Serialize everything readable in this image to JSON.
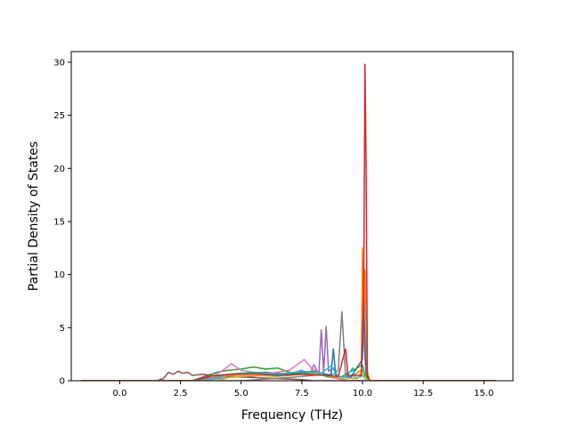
{
  "chart_data": {
    "type": "line",
    "title": "",
    "xlabel": "Frequency (THz)",
    "ylabel": "Partial Density of States",
    "xlim": [
      -2.0,
      16.2
    ],
    "ylim": [
      0,
      31
    ],
    "xticks": [
      {
        "value": 0.0,
        "label": "0.0"
      },
      {
        "value": 2.5,
        "label": "2.5"
      },
      {
        "value": 5.0,
        "label": "5.0"
      },
      {
        "value": 7.5,
        "label": "7.5"
      },
      {
        "value": 10.0,
        "label": "10.0"
      },
      {
        "value": 12.5,
        "label": "12.5"
      },
      {
        "value": 15.0,
        "label": "15.0"
      }
    ],
    "yticks": [
      {
        "value": 0,
        "label": "0"
      },
      {
        "value": 5,
        "label": "5"
      },
      {
        "value": 10,
        "label": "10"
      },
      {
        "value": 15,
        "label": "15"
      },
      {
        "value": 20,
        "label": "20"
      },
      {
        "value": 25,
        "label": "25"
      },
      {
        "value": 30,
        "label": "30"
      }
    ],
    "grid": false,
    "legend": "none",
    "series": [
      {
        "color": "#8c564b",
        "points": [
          [
            -1.6,
            0
          ],
          [
            1.5,
            0
          ],
          [
            1.8,
            0.2
          ],
          [
            2.0,
            0.8
          ],
          [
            2.2,
            0.6
          ],
          [
            2.4,
            0.9
          ],
          [
            2.6,
            0.7
          ],
          [
            2.8,
            0.8
          ],
          [
            3.0,
            0.5
          ],
          [
            3.4,
            0.6
          ],
          [
            3.8,
            0.5
          ],
          [
            4.5,
            0.4
          ],
          [
            5.5,
            0.3
          ],
          [
            6.5,
            0.2
          ],
          [
            7.5,
            0.1
          ],
          [
            8.0,
            0
          ],
          [
            15.5,
            0
          ]
        ]
      },
      {
        "color": "#9467bd",
        "points": [
          [
            -1.6,
            0
          ],
          [
            3.0,
            0
          ],
          [
            5.0,
            0.4
          ],
          [
            6.0,
            0.5
          ],
          [
            7.0,
            0.6
          ],
          [
            7.5,
            1.0
          ],
          [
            7.8,
            0.5
          ],
          [
            8.0,
            1.5
          ],
          [
            8.2,
            0.6
          ],
          [
            8.3,
            4.8
          ],
          [
            8.4,
            0.8
          ],
          [
            8.5,
            5.1
          ],
          [
            8.6,
            0.9
          ],
          [
            8.8,
            1.2
          ],
          [
            9.0,
            0.2
          ],
          [
            9.5,
            0
          ],
          [
            15.5,
            0
          ]
        ]
      },
      {
        "color": "#7f7f7f",
        "points": [
          [
            -1.6,
            0
          ],
          [
            5.0,
            0
          ],
          [
            7.0,
            0.3
          ],
          [
            8.0,
            0.5
          ],
          [
            8.8,
            0.6
          ],
          [
            9.0,
            1.0
          ],
          [
            9.15,
            6.5
          ],
          [
            9.3,
            0.5
          ],
          [
            9.6,
            0.2
          ],
          [
            9.95,
            0.4
          ],
          [
            10.0,
            7.8
          ],
          [
            10.08,
            3.0
          ],
          [
            10.15,
            0.5
          ],
          [
            10.3,
            0
          ],
          [
            15.5,
            0
          ]
        ]
      },
      {
        "color": "#ff7f0e",
        "points": [
          [
            -1.6,
            0
          ],
          [
            3.0,
            0
          ],
          [
            4.5,
            0.5
          ],
          [
            6.0,
            0.6
          ],
          [
            7.5,
            0.8
          ],
          [
            8.5,
            0.5
          ],
          [
            9.5,
            0.3
          ],
          [
            9.95,
            1.0
          ],
          [
            10.0,
            12.5
          ],
          [
            10.05,
            3.5
          ],
          [
            10.1,
            10.5
          ],
          [
            10.18,
            1.0
          ],
          [
            10.3,
            0
          ],
          [
            15.5,
            0
          ]
        ]
      },
      {
        "color": "#1f77b4",
        "points": [
          [
            -1.6,
            0
          ],
          [
            3.0,
            0
          ],
          [
            4.0,
            0.5
          ],
          [
            5.0,
            0.7
          ],
          [
            6.0,
            0.8
          ],
          [
            7.0,
            0.6
          ],
          [
            8.0,
            0.9
          ],
          [
            8.7,
            0.5
          ],
          [
            8.8,
            3.0
          ],
          [
            8.9,
            0.4
          ],
          [
            9.5,
            0.3
          ],
          [
            10.0,
            2.0
          ],
          [
            10.05,
            7.5
          ],
          [
            10.12,
            2.0
          ],
          [
            10.2,
            0
          ],
          [
            15.5,
            0
          ]
        ]
      },
      {
        "color": "#2ca02c",
        "points": [
          [
            -1.6,
            0
          ],
          [
            3.0,
            0
          ],
          [
            4.0,
            0.8
          ],
          [
            4.5,
            1.0
          ],
          [
            5.0,
            1.1
          ],
          [
            5.5,
            1.3
          ],
          [
            6.0,
            1.1
          ],
          [
            6.5,
            1.2
          ],
          [
            7.0,
            0.8
          ],
          [
            7.5,
            0.6
          ],
          [
            8.0,
            0.9
          ],
          [
            8.5,
            0.4
          ],
          [
            9.0,
            0.2
          ],
          [
            10.0,
            1.5
          ],
          [
            10.1,
            0.5
          ],
          [
            10.3,
            0
          ],
          [
            15.5,
            0
          ]
        ]
      },
      {
        "color": "#e377c2",
        "points": [
          [
            -1.6,
            0
          ],
          [
            3.5,
            0
          ],
          [
            4.2,
            0.9
          ],
          [
            4.6,
            1.6
          ],
          [
            5.0,
            1.0
          ],
          [
            5.5,
            0.8
          ],
          [
            6.2,
            0.7
          ],
          [
            7.0,
            1.0
          ],
          [
            7.6,
            2.0
          ],
          [
            7.9,
            1.2
          ],
          [
            8.3,
            0.6
          ],
          [
            9.0,
            0.2
          ],
          [
            9.5,
            0
          ],
          [
            15.5,
            0
          ]
        ]
      },
      {
        "color": "#17becf",
        "points": [
          [
            -1.6,
            0
          ],
          [
            3.5,
            0
          ],
          [
            4.5,
            0.6
          ],
          [
            5.5,
            0.8
          ],
          [
            6.5,
            0.6
          ],
          [
            7.5,
            0.9
          ],
          [
            8.3,
            0.7
          ],
          [
            8.7,
            1.4
          ],
          [
            9.0,
            0.4
          ],
          [
            9.3,
            0.3
          ],
          [
            9.6,
            1.2
          ],
          [
            9.7,
            0.2
          ],
          [
            10.0,
            0.5
          ],
          [
            10.2,
            0
          ],
          [
            15.5,
            0
          ]
        ]
      },
      {
        "color": "#bcbd22",
        "points": [
          [
            -1.6,
            0
          ],
          [
            4.0,
            0
          ],
          [
            4.5,
            0.3
          ],
          [
            5.5,
            0.5
          ],
          [
            6.5,
            0.4
          ],
          [
            7.5,
            0.6
          ],
          [
            8.5,
            0.5
          ],
          [
            9.0,
            0.3
          ],
          [
            9.8,
            0.2
          ],
          [
            10.0,
            1.0
          ],
          [
            10.1,
            0.2
          ],
          [
            10.3,
            0
          ],
          [
            15.5,
            0
          ]
        ]
      },
      {
        "color": "#d62728",
        "points": [
          [
            -1.6,
            0
          ],
          [
            3.0,
            0
          ],
          [
            3.5,
            0.4
          ],
          [
            4.5,
            0.6
          ],
          [
            5.5,
            0.7
          ],
          [
            6.5,
            0.5
          ],
          [
            7.5,
            0.6
          ],
          [
            8.5,
            0.5
          ],
          [
            9.0,
            0.4
          ],
          [
            9.3,
            3.0
          ],
          [
            9.4,
            0.5
          ],
          [
            9.95,
            0.5
          ],
          [
            10.05,
            8.0
          ],
          [
            10.1,
            29.8
          ],
          [
            10.15,
            20.0
          ],
          [
            10.2,
            0.5
          ],
          [
            10.3,
            0
          ],
          [
            15.5,
            0
          ]
        ]
      }
    ]
  }
}
